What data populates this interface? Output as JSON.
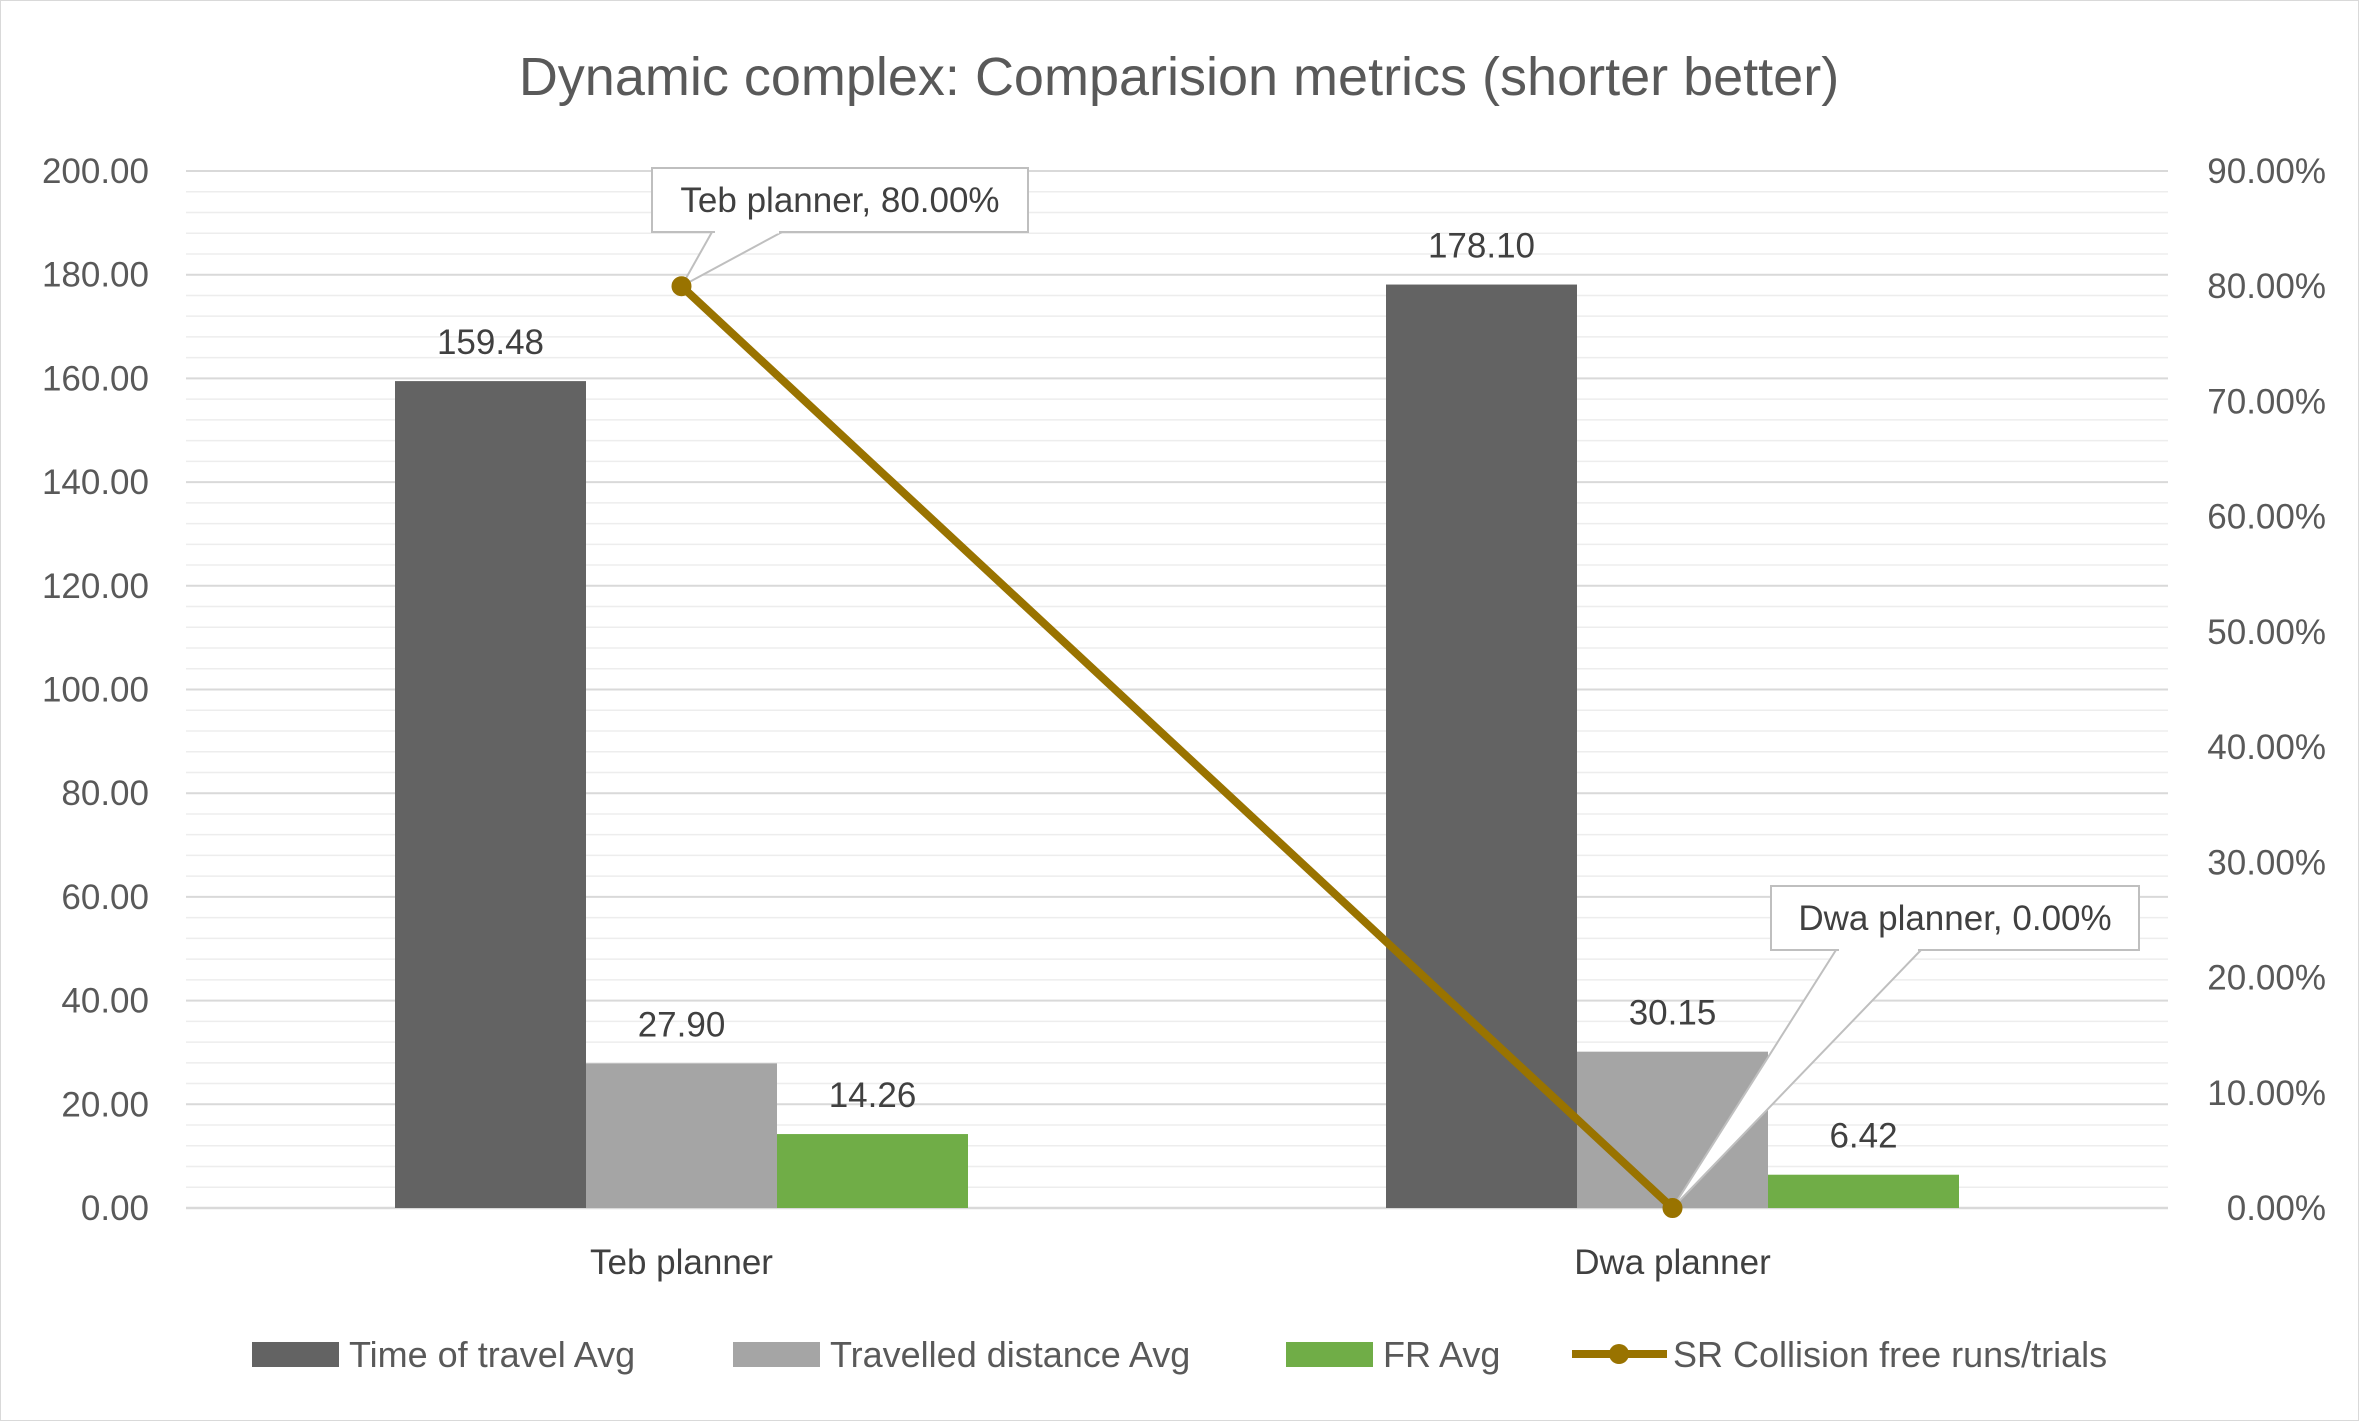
{
  "chart_data": {
    "type": "bar",
    "title": "Dynamic complex: Comparision metrics (shorter better)",
    "categories": [
      "Teb planner",
      "Dwa planner"
    ],
    "y_left": {
      "min": 0,
      "max": 200,
      "major_step": 20,
      "minor_step": 4,
      "tick_labels": [
        "0.00",
        "20.00",
        "40.00",
        "60.00",
        "80.00",
        "100.00",
        "120.00",
        "140.00",
        "160.00",
        "180.00",
        "200.00"
      ]
    },
    "y_right": {
      "min": 0,
      "max": 0.9,
      "step": 0.1,
      "tick_labels": [
        "0.00%",
        "10.00%",
        "20.00%",
        "30.00%",
        "40.00%",
        "50.00%",
        "60.00%",
        "70.00%",
        "80.00%",
        "90.00%"
      ]
    },
    "series": [
      {
        "name": "Time of travel Avg",
        "type": "bar",
        "axis": "left",
        "color": "#636363",
        "values": [
          159.48,
          178.1
        ],
        "labels": [
          "159.48",
          "178.10"
        ]
      },
      {
        "name": "Travelled distance Avg",
        "type": "bar",
        "axis": "left",
        "color": "#a5a5a5",
        "values": [
          27.9,
          30.15
        ],
        "labels": [
          "27.90",
          "30.15"
        ]
      },
      {
        "name": "FR Avg",
        "type": "bar",
        "axis": "left",
        "color": "#70ad47",
        "values": [
          14.26,
          6.42
        ],
        "labels": [
          "14.26",
          "6.42"
        ]
      },
      {
        "name": "SR Collision free runs/trials",
        "type": "line",
        "axis": "right",
        "color": "#997300",
        "values": [
          0.8,
          0.0
        ],
        "labels": [
          "Teb planner, 80.00%",
          "Dwa planner, 0.00%"
        ]
      }
    ],
    "legend_position": "bottom",
    "grid": true
  }
}
